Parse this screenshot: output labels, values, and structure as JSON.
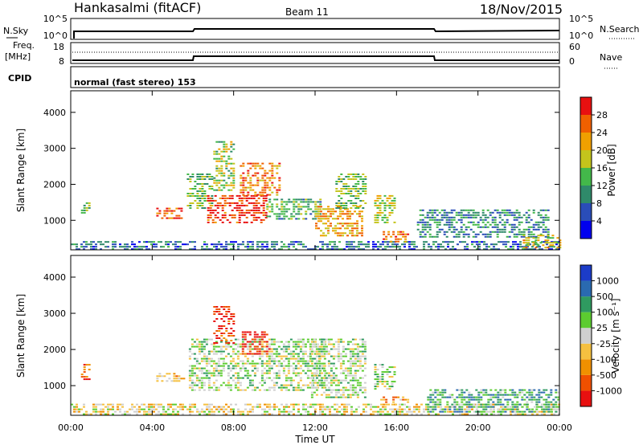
{
  "header": {
    "title": "Hankasalmi (fitACF)",
    "beam": "Beam 11",
    "date": "18/Nov/2015"
  },
  "strip_panels": {
    "nsky_label": "N.Sky",
    "nsky_ticks": [
      "10^5",
      "10^0"
    ],
    "nsearch_label": "N.Search",
    "nsearch_ticks": [
      "10^5",
      "10^0"
    ],
    "freq_label": "Freq.",
    "freq_units": "[MHz]",
    "freq_ticks": [
      "18",
      "8"
    ],
    "nave_label": "Nave",
    "nave_ticks": [
      "60",
      "0"
    ],
    "cpid_label": "CPID",
    "cpid_text": "normal (fast stereo) 153"
  },
  "chart_data": [
    {
      "type": "heatmap",
      "panel": "power",
      "ylabel": "Slant Range [km]",
      "xlabel": "Time UT",
      "ylim": [
        180,
        4600
      ],
      "xlim": [
        0,
        24
      ],
      "yticks": [
        "1000",
        "2000",
        "3000",
        "4000"
      ],
      "xticks": [
        "00:00",
        "04:00",
        "08:00",
        "12:00",
        "16:00",
        "20:00",
        "00:00"
      ],
      "colorbar": {
        "label": "Power [dB]",
        "ticks": [
          "4",
          "8",
          "12",
          "16",
          "20",
          "24",
          "28"
        ],
        "colors": [
          "#0000ee",
          "#2a4db8",
          "#2f8a6a",
          "#43b84a",
          "#c4c41c",
          "#f0a000",
          "#f06000",
          "#e81010"
        ]
      },
      "regions": [
        {
          "t0": 0.0,
          "t1": 24.0,
          "r0": 200,
          "r1": 420,
          "level": 0.25
        },
        {
          "t0": 0.5,
          "t1": 0.9,
          "r0": 1200,
          "r1": 1500,
          "level": 0.45
        },
        {
          "t0": 4.2,
          "t1": 5.6,
          "r0": 1050,
          "r1": 1350,
          "level": 0.85
        },
        {
          "t0": 5.7,
          "t1": 7.0,
          "r0": 1300,
          "r1": 2300,
          "level": 0.45
        },
        {
          "t0": 6.7,
          "t1": 9.6,
          "r0": 900,
          "r1": 1700,
          "level": 0.9
        },
        {
          "t0": 7.0,
          "t1": 8.0,
          "r0": 1800,
          "r1": 3200,
          "level": 0.5
        },
        {
          "t0": 8.3,
          "t1": 10.2,
          "r0": 1700,
          "r1": 2600,
          "level": 0.75
        },
        {
          "t0": 9.6,
          "t1": 12.3,
          "r0": 1050,
          "r1": 1600,
          "level": 0.4
        },
        {
          "t0": 12.0,
          "t1": 14.3,
          "r0": 550,
          "r1": 1400,
          "level": 0.7
        },
        {
          "t0": 13.0,
          "t1": 14.5,
          "r0": 1300,
          "r1": 2300,
          "level": 0.45
        },
        {
          "t0": 14.9,
          "t1": 15.9,
          "r0": 900,
          "r1": 1700,
          "level": 0.55
        },
        {
          "t0": 15.2,
          "t1": 16.6,
          "r0": 400,
          "r1": 700,
          "level": 0.8
        },
        {
          "t0": 17.0,
          "t1": 23.5,
          "r0": 500,
          "r1": 1300,
          "level": 0.3
        },
        {
          "t0": 22.2,
          "t1": 24.0,
          "r0": 250,
          "r1": 600,
          "level": 0.6
        }
      ]
    },
    {
      "type": "heatmap",
      "panel": "velocity",
      "ylabel": "Slant Range [km]",
      "xlabel": "Time UT",
      "ylim": [
        180,
        4600
      ],
      "xlim": [
        0,
        24
      ],
      "yticks": [
        "1000",
        "2000",
        "3000",
        "4000"
      ],
      "xticks": [
        "00:00",
        "04:00",
        "08:00",
        "12:00",
        "16:00",
        "20:00",
        "00:00"
      ],
      "colorbar": {
        "label": "Velocity [m s⁻¹]",
        "ticks": [
          "1000",
          "500",
          "100",
          "25",
          "-25",
          "-100",
          "-500",
          "-1000"
        ],
        "colors": [
          "#1c3cc8",
          "#2a6ab0",
          "#2f9a60",
          "#5ccc30",
          "#cfcfcf",
          "#f5c040",
          "#f09000",
          "#f05000",
          "#e81010"
        ]
      },
      "regions": [
        {
          "t0": 0.0,
          "t1": 24.0,
          "r0": 200,
          "r1": 500,
          "level": 0.55
        },
        {
          "t0": 0.5,
          "t1": 0.9,
          "r0": 1200,
          "r1": 1600,
          "level": 0.85
        },
        {
          "t0": 4.2,
          "t1": 5.6,
          "r0": 1100,
          "r1": 1350,
          "level": 0.65
        },
        {
          "t0": 5.8,
          "t1": 12.5,
          "r0": 900,
          "r1": 2300,
          "level": 0.45
        },
        {
          "t0": 7.0,
          "t1": 8.0,
          "r0": 2200,
          "r1": 3200,
          "level": 0.9
        },
        {
          "t0": 8.4,
          "t1": 9.8,
          "r0": 1900,
          "r1": 2500,
          "level": 0.95
        },
        {
          "t0": 11.8,
          "t1": 14.5,
          "r0": 700,
          "r1": 2300,
          "level": 0.45
        },
        {
          "t0": 14.9,
          "t1": 15.9,
          "r0": 900,
          "r1": 1600,
          "level": 0.45
        },
        {
          "t0": 15.2,
          "t1": 16.6,
          "r0": 450,
          "r1": 700,
          "level": 0.7
        },
        {
          "t0": 17.5,
          "t1": 24.0,
          "r0": 250,
          "r1": 900,
          "level": 0.3
        }
      ]
    }
  ]
}
